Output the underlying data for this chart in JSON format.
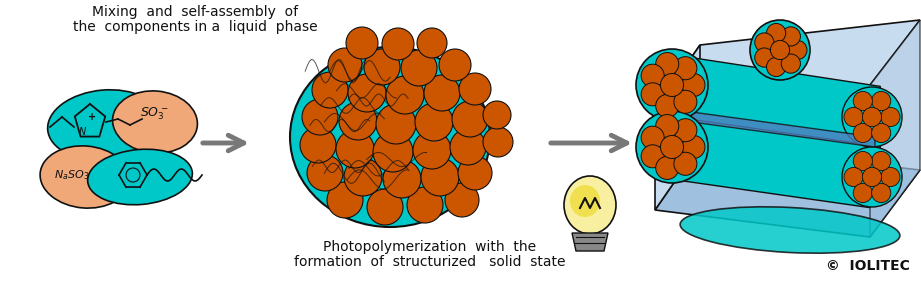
{
  "background_color": "#ffffff",
  "fig_width": 9.21,
  "fig_height": 2.85,
  "dpi": 100,
  "title_text1": "Mixing  and  self-assembly  of",
  "title_text2": "the  components in a  liquid  phase",
  "bottom_text1": "Photopolymerization  with  the",
  "bottom_text2": "formation  of  structurized   solid  state",
  "copyright_text": "©  IOLITEC",
  "text_fontsize": 10,
  "color_teal": "#00C8C8",
  "color_orange": "#CC5500",
  "color_orange_bg": "#F0A878",
  "color_blue": "#5080C0",
  "color_light_blue": "#A0C0E0",
  "color_very_light_blue": "#C8DCF0",
  "color_arrow": "#787878",
  "color_dark": "#111111",
  "color_yellow": "#F0E050",
  "color_yellow_light": "#F8F0A0",
  "color_gray": "#888888",
  "color_gray_light": "#AAAAAA"
}
